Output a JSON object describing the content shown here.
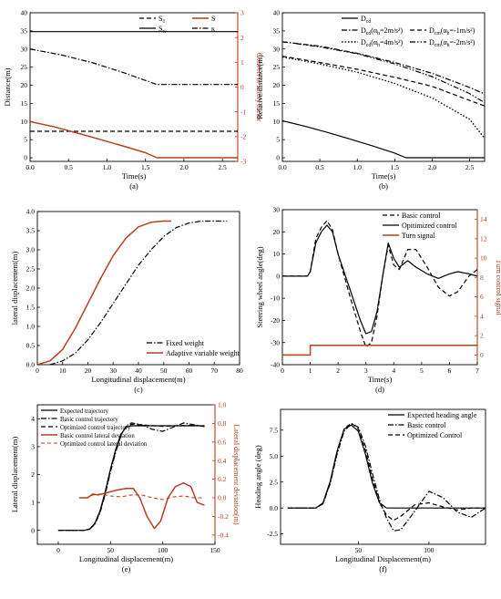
{
  "chart_data": [
    {
      "id": "a",
      "type": "line",
      "caption": "(a)",
      "xlabel": "Time(s)",
      "ylabel": "Distance(m)",
      "y2label": "Convert to safety factor",
      "xlim": [
        0,
        2.7
      ],
      "ylim": [
        -1,
        40
      ],
      "y2lim": [
        -3,
        3
      ],
      "xticks": [
        0.0,
        0.5,
        1.0,
        1.5,
        2.0,
        2.5
      ],
      "yticks": [
        0,
        5,
        10,
        15,
        20,
        25,
        30,
        35,
        40
      ],
      "y2ticks": [
        -3,
        -2,
        -1,
        0,
        1,
        2,
        3
      ],
      "legend": [
        {
          "label": "S",
          "sub": "1",
          "style": "dash"
        },
        {
          "label": "S",
          "sub": "",
          "style": "solid-red"
        },
        {
          "label": "S",
          "sub": "w",
          "style": "solid"
        },
        {
          "label": "κ",
          "sub": "",
          "style": "dashdot"
        }
      ],
      "series": [
        {
          "axis": "y",
          "style": "dash",
          "x": [
            0,
            2.7
          ],
          "y": [
            7.3,
            7.3
          ]
        },
        {
          "axis": "y",
          "style": "solid-red",
          "x": [
            0,
            0.3,
            0.6,
            0.9,
            1.2,
            1.5,
            1.65,
            2.0,
            2.7
          ],
          "y": [
            10,
            8.6,
            6.9,
            5.1,
            3.3,
            1.4,
            0,
            0,
            0
          ]
        },
        {
          "axis": "y",
          "style": "solid",
          "x": [
            0,
            2.7
          ],
          "y": [
            34.8,
            34.8
          ]
        },
        {
          "axis": "y",
          "style": "dashdot",
          "x": [
            0,
            0.4,
            0.8,
            1.2,
            1.65,
            2.0,
            2.7
          ],
          "y": [
            30,
            28.4,
            26.3,
            23.6,
            20.2,
            20.2,
            20.2
          ]
        }
      ]
    },
    {
      "id": "b",
      "type": "line",
      "caption": "(b)",
      "xlabel": "Time(s)",
      "ylabel": "Relative distance(m)",
      "xlim": [
        0,
        2.7
      ],
      "ylim": [
        -1,
        40
      ],
      "xticks": [
        0.0,
        0.5,
        1.0,
        1.5,
        2.0,
        2.5
      ],
      "yticks": [
        0,
        5,
        10,
        15,
        20,
        25,
        30,
        35,
        40
      ],
      "legend": [
        {
          "label": "D",
          "sub": "cd",
          "paren": "",
          "style": "solid"
        },
        {
          "label": "D",
          "sub": "cd",
          "paren": "(α",
          "psub": "h",
          "pend": "=2m/s²)",
          "style": "dashdot"
        },
        {
          "label": "D",
          "sub": "cm",
          "paren": "(α",
          "psub": "h",
          "pend": "=-1m/s²)",
          "style": "dash"
        },
        {
          "label": "D",
          "sub": "cd",
          "paren": "(α",
          "psub": "h",
          "pend": "=4m/s²)",
          "style": "dot"
        },
        {
          "label": "D",
          "sub": "cm",
          "paren": "(α",
          "psub": "h",
          "pend": "=-2m/s²)",
          "style": "dashdotdot"
        }
      ],
      "series": [
        {
          "style": "solid",
          "x": [
            0,
            0.3,
            0.6,
            0.9,
            1.2,
            1.5,
            1.65,
            2.0,
            2.7
          ],
          "y": [
            10.2,
            8.7,
            7.0,
            5.2,
            3.3,
            1.3,
            0,
            0,
            0
          ]
        },
        {
          "style": "dashdot",
          "x": [
            0,
            0.5,
            1.0,
            1.5,
            2.0,
            2.5,
            2.7
          ],
          "y": [
            32,
            30.8,
            28.8,
            26.3,
            23.3,
            19.4,
            17.6
          ]
        },
        {
          "style": "dash",
          "x": [
            0,
            0.5,
            1.0,
            1.5,
            2.0,
            2.5,
            2.7
          ],
          "y": [
            28,
            26.3,
            24.4,
            22.2,
            19.7,
            15.8,
            14.3
          ]
        },
        {
          "style": "dot",
          "x": [
            0,
            0.5,
            1.0,
            1.5,
            2.0,
            2.5,
            2.7
          ],
          "y": [
            27.8,
            25.9,
            23.6,
            20.5,
            16.5,
            10.6,
            5.4
          ]
        },
        {
          "style": "dashdotdot",
          "x": [
            0,
            0.5,
            1.0,
            1.5,
            2.0,
            2.5,
            2.7
          ],
          "y": [
            32,
            30.6,
            28.7,
            25.9,
            22.4,
            17.7,
            15.2
          ]
        }
      ]
    },
    {
      "id": "c",
      "type": "line",
      "caption": "(c)",
      "xlabel": "Longitudinal displacement(m)",
      "ylabel": "lateral displacement(m)",
      "xlim": [
        0,
        80
      ],
      "ylim": [
        0,
        4
      ],
      "xticks": [
        0,
        10,
        20,
        30,
        40,
        50,
        60,
        70,
        80
      ],
      "yticks": [
        0.0,
        0.5,
        1.0,
        1.5,
        2.0,
        2.5,
        3.0,
        3.5,
        4.0
      ],
      "legend": [
        {
          "label": "Fixed weight",
          "style": "dashdot"
        },
        {
          "label": "Adaptive variable weight",
          "style": "solid-red"
        }
      ],
      "series": [
        {
          "style": "dashdot",
          "x": [
            5,
            10,
            15,
            20,
            25,
            30,
            35,
            40,
            45,
            50,
            55,
            60,
            65,
            70,
            75
          ],
          "y": [
            0,
            0.1,
            0.3,
            0.65,
            1.1,
            1.6,
            2.1,
            2.6,
            3.0,
            3.35,
            3.58,
            3.7,
            3.75,
            3.75,
            3.75
          ]
        },
        {
          "style": "solid-red",
          "x": [
            0,
            5,
            10,
            15,
            20,
            25,
            30,
            35,
            40,
            45,
            50,
            53
          ],
          "y": [
            0,
            0.1,
            0.4,
            0.95,
            1.6,
            2.25,
            2.85,
            3.3,
            3.6,
            3.72,
            3.75,
            3.75
          ]
        }
      ]
    },
    {
      "id": "d",
      "type": "line",
      "caption": "(d)",
      "xlabel": "Time(s)",
      "ylabel": "Steering wheel angle(deg)",
      "y2label": "Turn control signal",
      "xlim": [
        0,
        7
      ],
      "ylim": [
        -40,
        30
      ],
      "y2lim": [
        -1,
        15
      ],
      "xticks": [
        0,
        1,
        2,
        3,
        4,
        5,
        6,
        7
      ],
      "yticks": [
        -40,
        -30,
        -20,
        -10,
        0,
        10,
        20,
        30
      ],
      "y2ticks": [
        0,
        2,
        4,
        6,
        8,
        10,
        12,
        14
      ],
      "legend": [
        {
          "label": "Basic control",
          "style": "dash"
        },
        {
          "label": "Opitimized control",
          "style": "solid"
        },
        {
          "label": "Turn signal",
          "style": "solid-red"
        }
      ],
      "series": [
        {
          "axis": "y",
          "style": "dash",
          "x": [
            0,
            0.9,
            1.0,
            1.2,
            1.4,
            1.6,
            1.8,
            2.0,
            2.4,
            2.8,
            3.0,
            3.2,
            3.4,
            3.6,
            3.8,
            4.0,
            4.2,
            4.5,
            4.8,
            5.2,
            5.6,
            6.0,
            6.3,
            6.7,
            7.0
          ],
          "y": [
            0,
            0,
            2,
            17,
            22,
            25,
            21,
            10,
            -8,
            -25,
            -32,
            -30,
            -18,
            0,
            14,
            5,
            3,
            12,
            12,
            4,
            -5,
            -9,
            -7,
            0,
            3
          ]
        },
        {
          "axis": "y",
          "style": "solid",
          "x": [
            0,
            0.9,
            1.0,
            1.2,
            1.4,
            1.6,
            1.8,
            2.0,
            2.4,
            2.8,
            3.0,
            3.2,
            3.4,
            3.6,
            3.8,
            4.0,
            4.2,
            4.5,
            4.8,
            5.2,
            5.6,
            6.0,
            6.3,
            6.7,
            7.0
          ],
          "y": [
            0,
            0,
            2,
            15,
            20,
            23,
            20,
            10,
            -5,
            -20,
            -26,
            -25,
            -16,
            0,
            15,
            8,
            4,
            7,
            4,
            1,
            -1,
            1,
            2,
            1,
            0
          ]
        },
        {
          "axis": "y2",
          "style": "solid-red",
          "x": [
            0,
            1,
            1,
            7
          ],
          "y": [
            0,
            0,
            1,
            1
          ]
        }
      ]
    },
    {
      "id": "e",
      "type": "line",
      "caption": "(e)",
      "xlabel": "Longitudinal displacement(m)",
      "ylabel": "Lateral displacement(m)",
      "y2label": "Lateral displacement deviation(m)",
      "xlim": [
        -20,
        150
      ],
      "ylim": [
        -0.5,
        4.5
      ],
      "y2lim": [
        -0.5,
        1.0
      ],
      "xticks": [
        0,
        50,
        100,
        150
      ],
      "yticks": [
        0,
        1,
        2,
        3,
        4
      ],
      "y2ticks": [
        -0.4,
        -0.2,
        0.0,
        0.2,
        0.4,
        0.6,
        0.8,
        1.0
      ],
      "legend": [
        {
          "label": "Expected trajectory",
          "style": "solid"
        },
        {
          "label": "Basic control trajectory",
          "style": "dashdot"
        },
        {
          "label": "Optimized control trajectory",
          "style": "dash"
        },
        {
          "label": "Basic control lateral deviation",
          "style": "solid-red"
        },
        {
          "label": "Optimized control lateral deviation",
          "style": "dash-red"
        }
      ],
      "series": [
        {
          "axis": "y",
          "style": "solid",
          "x": [
            0,
            25,
            30,
            35,
            40,
            45,
            50,
            55,
            60,
            65,
            70,
            140
          ],
          "y": [
            0,
            0,
            0.05,
            0.25,
            0.7,
            1.4,
            2.2,
            2.9,
            3.45,
            3.7,
            3.75,
            3.75
          ]
        },
        {
          "axis": "y",
          "style": "dashdot",
          "x": [
            0,
            25,
            30,
            35,
            40,
            45,
            50,
            55,
            60,
            65,
            70,
            75,
            80,
            90,
            100,
            110,
            120,
            130,
            140
          ],
          "y": [
            0,
            0,
            0.04,
            0.22,
            0.62,
            1.3,
            2.1,
            2.8,
            3.4,
            3.75,
            3.85,
            3.82,
            3.78,
            3.62,
            3.55,
            3.7,
            3.85,
            3.78,
            3.72
          ]
        },
        {
          "axis": "y",
          "style": "dash",
          "x": [
            0,
            25,
            30,
            35,
            40,
            45,
            50,
            55,
            60,
            65,
            70,
            80,
            100,
            120,
            140
          ],
          "y": [
            0,
            0,
            0.04,
            0.23,
            0.66,
            1.35,
            2.15,
            2.85,
            3.42,
            3.72,
            3.8,
            3.78,
            3.73,
            3.76,
            3.75
          ]
        },
        {
          "axis": "y2",
          "style": "solid-red",
          "x": [
            20,
            28,
            33,
            38,
            45,
            55,
            65,
            72,
            78,
            85,
            92,
            98,
            105,
            112,
            120,
            127,
            133,
            140
          ],
          "y": [
            0,
            0,
            0.04,
            0.03,
            0.05,
            0.08,
            0.1,
            0.1,
            0.0,
            -0.2,
            -0.33,
            -0.25,
            0.0,
            0.12,
            0.16,
            0.12,
            -0.05,
            -0.08
          ]
        },
        {
          "axis": "y2",
          "style": "dash-red",
          "x": [
            20,
            28,
            33,
            40,
            50,
            60,
            70,
            80,
            90,
            100,
            110,
            120,
            130,
            140
          ],
          "y": [
            0,
            0,
            0.03,
            0.04,
            0.02,
            0.01,
            0.03,
            0.03,
            0.0,
            -0.02,
            0.01,
            0.02,
            0.0,
            0.0
          ]
        }
      ]
    },
    {
      "id": "f",
      "type": "line",
      "caption": "(f)",
      "xlabel": "Longitudinal Displacement(m)",
      "ylabel": "Heading angle (deg)",
      "xlim": [
        -5,
        140
      ],
      "ylim": [
        -3.5,
        9.5
      ],
      "xticks": [
        50,
        100
      ],
      "yticks": [
        -2.5,
        0.0,
        2.5,
        5.0,
        7.5
      ],
      "legend": [
        {
          "label": "Expected heading angle",
          "style": "solid"
        },
        {
          "label": "Basic control",
          "style": "dashdot"
        },
        {
          "label": "Optimized Control",
          "style": "dash"
        }
      ],
      "series": [
        {
          "style": "solid",
          "x": [
            0,
            20,
            25,
            30,
            35,
            40,
            45,
            50,
            55,
            60,
            65,
            70,
            140
          ],
          "y": [
            0,
            0,
            0.5,
            2.5,
            5.5,
            7.6,
            8.0,
            7.4,
            5.2,
            2.4,
            0.5,
            0,
            0
          ]
        },
        {
          "style": "dashdot",
          "x": [
            0,
            20,
            25,
            30,
            35,
            40,
            45,
            50,
            55,
            60,
            65,
            70,
            75,
            80,
            90,
            100,
            110,
            120,
            130,
            140
          ],
          "y": [
            0,
            0,
            0.4,
            2.3,
            5.2,
            7.4,
            8.1,
            7.8,
            6.0,
            3.3,
            0.8,
            -1.0,
            -2.2,
            -2.1,
            -0.3,
            1.6,
            1.0,
            -0.4,
            -0.9,
            0.0
          ]
        },
        {
          "style": "dash",
          "x": [
            0,
            20,
            25,
            30,
            35,
            40,
            45,
            50,
            55,
            60,
            65,
            70,
            75,
            80,
            90,
            100,
            110,
            120,
            130,
            140
          ],
          "y": [
            0,
            0,
            0.45,
            2.4,
            5.4,
            7.6,
            8.2,
            7.6,
            5.6,
            2.8,
            0.5,
            -0.7,
            -1.2,
            -0.8,
            0.3,
            0.5,
            0.1,
            -0.2,
            0.0,
            0.0
          ]
        }
      ]
    }
  ]
}
